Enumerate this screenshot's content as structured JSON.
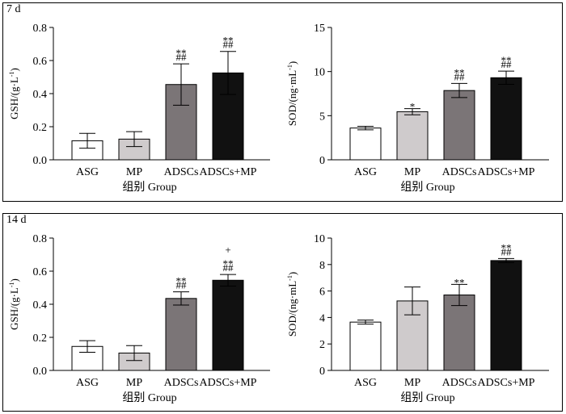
{
  "chart_data": [
    {
      "panel": "7 d",
      "charts": [
        {
          "type": "bar",
          "ylabel": "GSH/(g·L-1)",
          "ylabel_main": "GSH/(g·L",
          "ylabel_sup": "-1",
          "ylabel_end": ")",
          "xlabel": "组别  Group",
          "categories": [
            "ASG",
            "MP",
            "ADSCs",
            "ADSCs+MP"
          ],
          "values": [
            0.115,
            0.125,
            0.455,
            0.525
          ],
          "errors": [
            0.045,
            0.045,
            0.125,
            0.13
          ],
          "annotations": [
            [],
            [],
            [
              "##",
              "**"
            ],
            [
              "##",
              "**"
            ]
          ],
          "ylim": [
            0,
            0.8
          ],
          "yticks": [
            "0.0",
            "0.2",
            "0.4",
            "0.6",
            "0.8"
          ],
          "fills": [
            "#ffffff",
            "#cfcbcc",
            "#7b7577",
            "#111111"
          ]
        },
        {
          "type": "bar",
          "ylabel": "SOD/(ng·mL-1)",
          "ylabel_main": "SOD/(ng·mL",
          "ylabel_sup": "-1",
          "ylabel_end": ")",
          "xlabel": "组别  Group",
          "categories": [
            "ASG",
            "MP",
            "ADSCs",
            "ADSCs+MP"
          ],
          "values": [
            3.6,
            5.45,
            7.85,
            9.3
          ],
          "errors": [
            0.2,
            0.35,
            0.8,
            0.75
          ],
          "annotations": [
            [],
            [
              "*"
            ],
            [
              "##",
              "**"
            ],
            [
              "##",
              "**"
            ]
          ],
          "ylim": [
            0,
            15
          ],
          "yticks": [
            "0",
            "5",
            "10",
            "15"
          ],
          "fills": [
            "#ffffff",
            "#cfcbcc",
            "#7b7577",
            "#111111"
          ]
        }
      ]
    },
    {
      "panel": "14 d",
      "charts": [
        {
          "type": "bar",
          "ylabel": "GSH/(g·L-1)",
          "ylabel_main": "GSH/(g·L",
          "ylabel_sup": "-1",
          "ylabel_end": ")",
          "xlabel": "组别  Group",
          "categories": [
            "ASG",
            "MP",
            "ADSCs",
            "ADSCs+MP"
          ],
          "values": [
            0.145,
            0.105,
            0.435,
            0.545
          ],
          "errors": [
            0.035,
            0.045,
            0.04,
            0.035
          ],
          "annotations": [
            [],
            [],
            [
              "##",
              "**"
            ],
            [
              "##",
              "**",
              "+"
            ]
          ],
          "ylim": [
            0,
            0.8
          ],
          "yticks": [
            "0.0",
            "0.2",
            "0.4",
            "0.6",
            "0.8"
          ],
          "fills": [
            "#ffffff",
            "#cfcbcc",
            "#7b7577",
            "#111111"
          ]
        },
        {
          "type": "bar",
          "ylabel": "SOD/(ng·mL-1)",
          "ylabel_main": "SOD/(ng·mL",
          "ylabel_sup": "-1",
          "ylabel_end": ")",
          "xlabel": "组别  Group",
          "categories": [
            "ASG",
            "MP",
            "ADSCs",
            "ADSCs+MP"
          ],
          "values": [
            3.65,
            5.25,
            5.7,
            8.3
          ],
          "errors": [
            0.15,
            1.05,
            0.8,
            0.15
          ],
          "annotations": [
            [],
            [],
            [
              "**"
            ],
            [
              "##",
              "**"
            ]
          ],
          "ylim": [
            0,
            10
          ],
          "yticks": [
            "0",
            "2",
            "4",
            "6",
            "8",
            "10"
          ],
          "fills": [
            "#ffffff",
            "#cfcbcc",
            "#7b7577",
            "#111111"
          ]
        }
      ]
    }
  ]
}
